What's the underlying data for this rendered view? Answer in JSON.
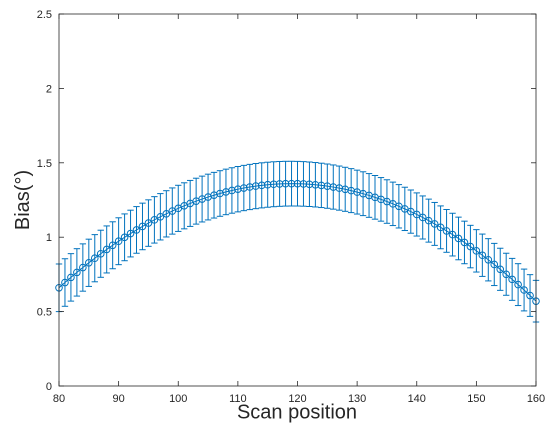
{
  "chart_data": {
    "type": "scatter",
    "title": "",
    "xlabel": "Scan position",
    "ylabel": "Bias(°)",
    "xlim": [
      80,
      160
    ],
    "ylim": [
      0,
      2.5
    ],
    "xticks": [
      "80",
      "90",
      "100",
      "110",
      "120",
      "130",
      "140",
      "150",
      "160"
    ],
    "yticks": [
      "0",
      "0.5",
      "1",
      "1.5",
      "2",
      "2.5"
    ],
    "grid": false,
    "legend": "none",
    "marker": "open-circle",
    "color": "#0072BD",
    "series": [
      {
        "x": [
          80,
          160
        ],
        "y": [
          0.66,
          0.57
        ],
        "err": [
          0.16,
          0.14
        ],
        "vertex_x": 119,
        "vertex_y": 1.36,
        "n_points": 81
      }
    ]
  }
}
